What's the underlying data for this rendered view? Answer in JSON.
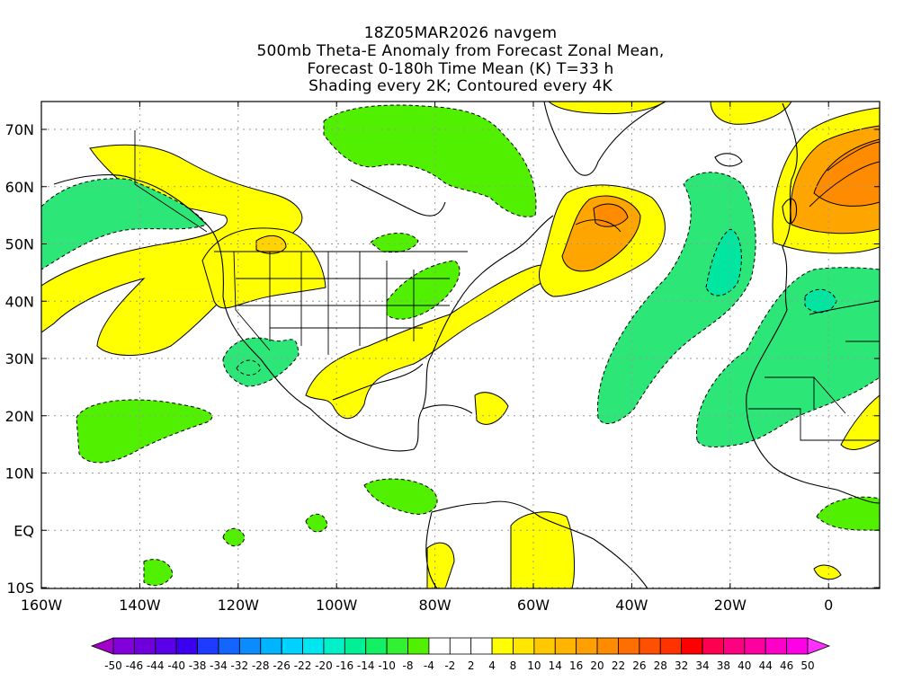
{
  "titles": [
    "18Z05MAR2026 navgem",
    "500mb Theta-E Anomaly from Forecast Zonal Mean,",
    "Forecast 0-180h Time Mean (K) T=33 h",
    "Shading every 2K; Contoured every 4K"
  ],
  "axes": {
    "lon_labels": [
      "160W",
      "140W",
      "120W",
      "100W",
      "80W",
      "60W",
      "40W",
      "20W",
      "0"
    ],
    "lat_labels": [
      "70N",
      "60N",
      "50N",
      "40N",
      "30N",
      "20N",
      "10N",
      "EQ",
      "10S"
    ]
  },
  "colorbar": {
    "labels": [
      "-50",
      "-46",
      "-44",
      "-40",
      "-38",
      "-34",
      "-32",
      "-28",
      "-26",
      "-22",
      "-20",
      "-16",
      "-14",
      "-10",
      "-8",
      "-4",
      "-2",
      "2",
      "4",
      "8",
      "10",
      "14",
      "16",
      "20",
      "22",
      "26",
      "28",
      "32",
      "34",
      "38",
      "40",
      "44",
      "46",
      "50"
    ],
    "colors": [
      "#a000c8",
      "#8200dc",
      "#6e00dc",
      "#5a00e6",
      "#3c00f0",
      "#1e3cff",
      "#1464ff",
      "#0a8cff",
      "#00b4ff",
      "#00d2ff",
      "#00e6f0",
      "#00f0c8",
      "#00f096",
      "#14f064",
      "#32f032",
      "#50f000",
      "#ffffff",
      "#ffffff",
      "#ffffff",
      "#ffff00",
      "#ffe600",
      "#ffc800",
      "#ffb400",
      "#ffa000",
      "#ff8c00",
      "#ff6e00",
      "#ff5000",
      "#ff3200",
      "#ff0000",
      "#ff0050",
      "#ff0080",
      "#ff00a0",
      "#ff00c8",
      "#ff00e6",
      "#ff30ff"
    ]
  },
  "colors": {
    "green": "#50f000",
    "green_light": "#2ce678",
    "teal": "#00e6a0",
    "yellow": "#ffff00",
    "yellow_orange": "#ffd200",
    "orange": "#ffa500",
    "orange_dark": "#ff8c00"
  }
}
